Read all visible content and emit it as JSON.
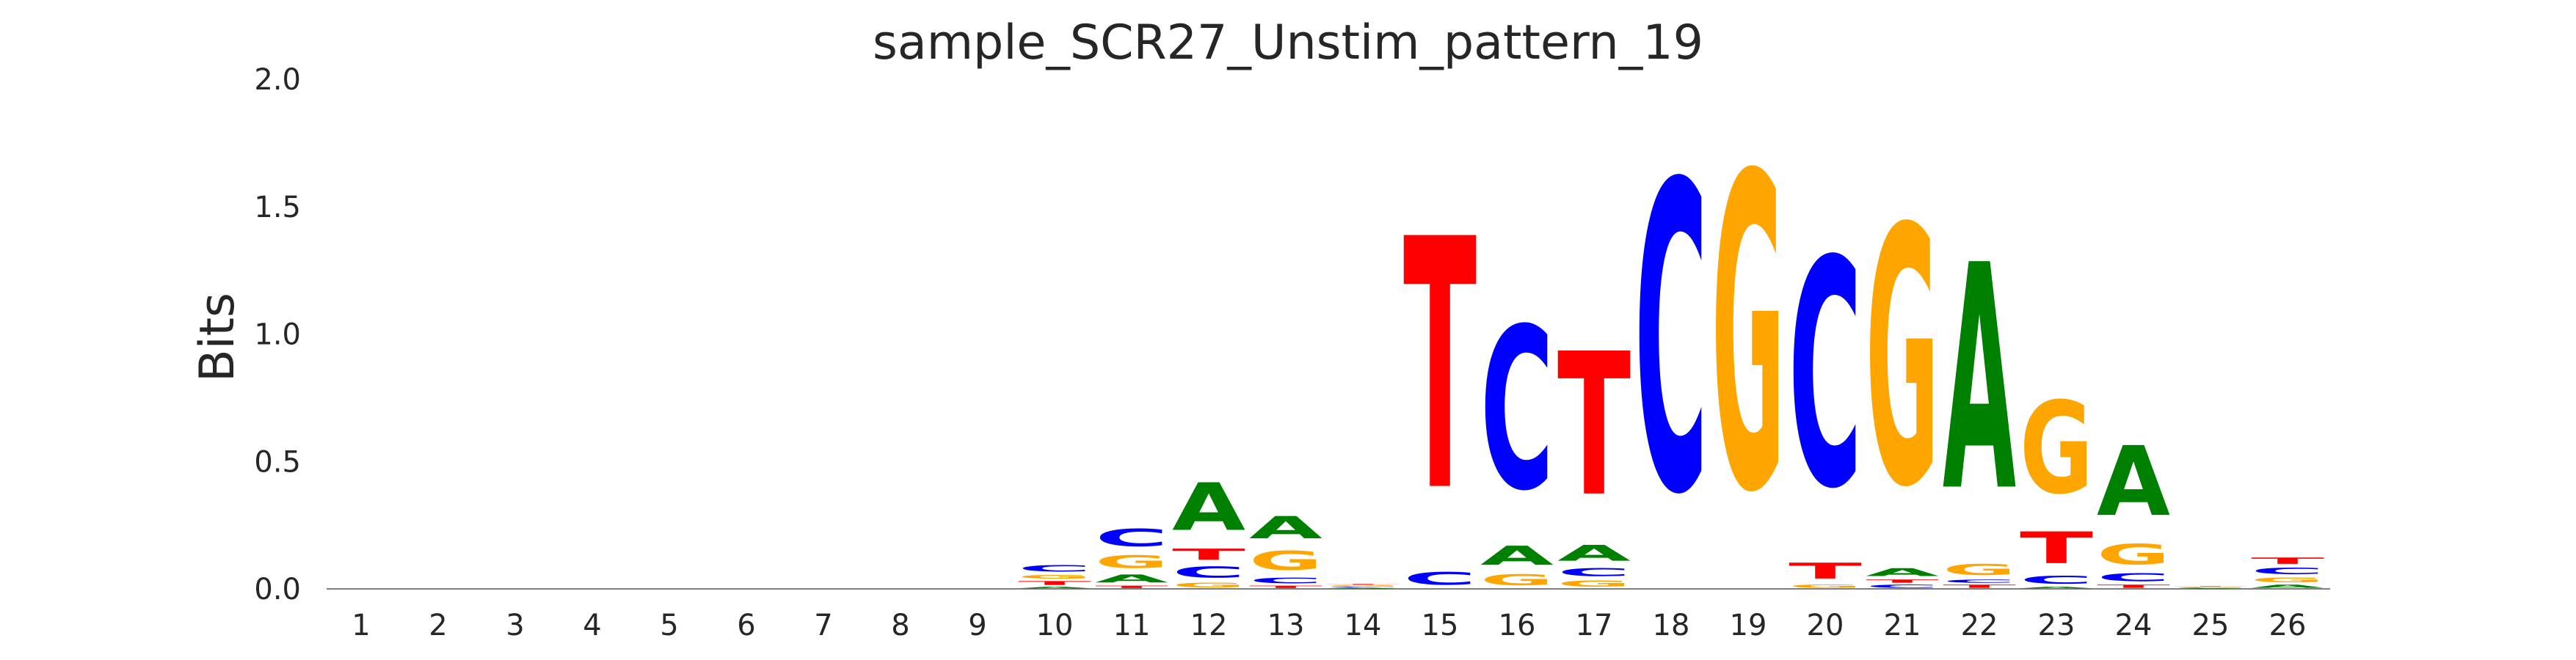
{
  "chart_data": {
    "type": "sequence-logo",
    "title": "sample_SCR27_Unstim_pattern_19",
    "xlabel": "",
    "ylabel": "Bits",
    "ylim": [
      0,
      2.0
    ],
    "yticks": [
      "0.0",
      "0.5",
      "1.0",
      "1.5",
      "2.0"
    ],
    "grid": false,
    "colors": {
      "A": "#008000",
      "C": "#0000ff",
      "G": "#ffa500",
      "T": "#ff0000"
    },
    "positions": [
      {
        "x": "1",
        "stack": []
      },
      {
        "x": "2",
        "stack": []
      },
      {
        "x": "3",
        "stack": []
      },
      {
        "x": "4",
        "stack": []
      },
      {
        "x": "5",
        "stack": []
      },
      {
        "x": "6",
        "stack": []
      },
      {
        "x": "7",
        "stack": []
      },
      {
        "x": "8",
        "stack": []
      },
      {
        "x": "9",
        "stack": []
      },
      {
        "x": "10",
        "stack": [
          {
            "base": "A",
            "bits": 0.01
          },
          {
            "base": "T",
            "bits": 0.025
          },
          {
            "base": "G",
            "bits": 0.025
          },
          {
            "base": "C",
            "bits": 0.04
          }
        ]
      },
      {
        "x": "11",
        "stack": [
          {
            "base": "T",
            "bits": 0.015
          },
          {
            "base": "A",
            "bits": 0.05
          },
          {
            "base": "G",
            "bits": 0.08
          },
          {
            "base": "C",
            "bits": 0.11
          }
        ]
      },
      {
        "x": "12",
        "stack": [
          {
            "base": "G",
            "bits": 0.03
          },
          {
            "base": "C",
            "bits": 0.07
          },
          {
            "base": "T",
            "bits": 0.07
          },
          {
            "base": "A",
            "bits": 0.3
          }
        ]
      },
      {
        "x": "13",
        "stack": [
          {
            "base": "T",
            "bits": 0.015
          },
          {
            "base": "C",
            "bits": 0.035
          },
          {
            "base": "G",
            "bits": 0.12
          },
          {
            "base": "A",
            "bits": 0.14
          }
        ]
      },
      {
        "x": "14",
        "stack": [
          {
            "base": "A",
            "bits": 0.005
          },
          {
            "base": "C",
            "bits": 0.005
          },
          {
            "base": "G",
            "bits": 0.005
          },
          {
            "base": "T",
            "bits": 0.005
          }
        ]
      },
      {
        "x": "15",
        "stack": [
          {
            "base": "C",
            "bits": 0.08
          },
          {
            "base": "T",
            "bits": 1.58
          }
        ]
      },
      {
        "x": "16",
        "stack": [
          {
            "base": "G",
            "bits": 0.07
          },
          {
            "base": "A",
            "bits": 0.12
          },
          {
            "base": "C",
            "bits": 1.02
          }
        ]
      },
      {
        "x": "17",
        "stack": [
          {
            "base": "G",
            "bits": 0.04
          },
          {
            "base": "C",
            "bits": 0.05
          },
          {
            "base": "A",
            "bits": 0.1
          },
          {
            "base": "T",
            "bits": 0.9
          }
        ]
      },
      {
        "x": "18",
        "stack": [
          {
            "base": "C",
            "bits": 1.94
          }
        ]
      },
      {
        "x": "19",
        "stack": [
          {
            "base": "G",
            "bits": 1.98
          }
        ]
      },
      {
        "x": "20",
        "stack": [
          {
            "base": "G",
            "bits": 0.02
          },
          {
            "base": "T",
            "bits": 0.1
          },
          {
            "base": "C",
            "bits": 1.43
          }
        ]
      },
      {
        "x": "21",
        "stack": [
          {
            "base": "C",
            "bits": 0.02
          },
          {
            "base": "T",
            "bits": 0.02
          },
          {
            "base": "A",
            "bits": 0.05
          },
          {
            "base": "G",
            "bits": 1.62
          }
        ]
      },
      {
        "x": "22",
        "stack": [
          {
            "base": "T",
            "bits": 0.02
          },
          {
            "base": "C",
            "bits": 0.02
          },
          {
            "base": "G",
            "bits": 0.07
          },
          {
            "base": "A",
            "bits": 1.42
          }
        ]
      },
      {
        "x": "23",
        "stack": [
          {
            "base": "A",
            "bits": 0.01
          },
          {
            "base": "C",
            "bits": 0.05
          },
          {
            "base": "T",
            "bits": 0.2
          },
          {
            "base": "G",
            "bits": 0.58
          }
        ]
      },
      {
        "x": "24",
        "stack": [
          {
            "base": "T",
            "bits": 0.02
          },
          {
            "base": "C",
            "bits": 0.05
          },
          {
            "base": "G",
            "bits": 0.13
          },
          {
            "base": "A",
            "bits": 0.44
          }
        ]
      },
      {
        "x": "25",
        "stack": [
          {
            "base": "A",
            "bits": 0.003
          },
          {
            "base": "C",
            "bits": 0.003
          },
          {
            "base": "G",
            "bits": 0.003
          },
          {
            "base": "T",
            "bits": 0.003
          }
        ]
      },
      {
        "x": "26",
        "stack": [
          {
            "base": "A",
            "bits": 0.02
          },
          {
            "base": "G",
            "bits": 0.03
          },
          {
            "base": "C",
            "bits": 0.04
          },
          {
            "base": "T",
            "bits": 0.04
          }
        ]
      }
    ]
  }
}
